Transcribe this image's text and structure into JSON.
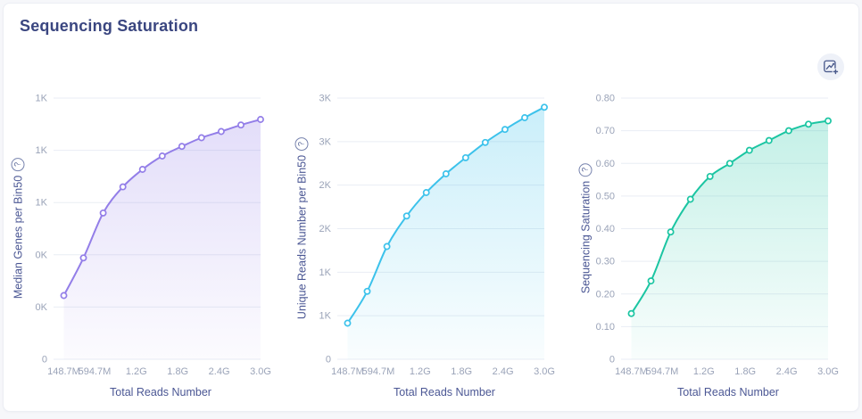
{
  "title": "Sequencing Saturation",
  "ui": {
    "help_glyph": "?",
    "export_icon": "save-as-image-icon"
  },
  "style": {
    "page_bg": "#f6f7fa",
    "card_bg": "#ffffff",
    "card_border": "#eceef4",
    "title_color": "#3a4680",
    "axis_title_color": "#4b5794",
    "tick_label_color": "#9aa3b8",
    "grid_color": "#e9edf4",
    "button_bg": "#eef1f8",
    "icon_color": "#4a5a8c"
  },
  "chart_data": [
    {
      "type": "area",
      "title": "Median Genes per Bin50",
      "xlabel": "Total Reads Number",
      "x_tick_labels": [
        "148.7M",
        "594.7M",
        "1.2G",
        "1.8G",
        "2.4G",
        "3.0G"
      ],
      "x_tick_values_millions": [
        148.7,
        594.7,
        1200,
        1800,
        2400,
        3000
      ],
      "xlim_millions": [
        0,
        3000
      ],
      "x_millions": [
        148.7,
        433.8,
        719.0,
        1004.1,
        1289.2,
        1574.4,
        1859.5,
        2144.6,
        2429.7,
        2714.9,
        3000.0
      ],
      "values": [
        244,
        388,
        560,
        660,
        727,
        778,
        815,
        848,
        872,
        897,
        918
      ],
      "ylim": [
        0,
        1000
      ],
      "y_tick_labels_bottom_to_top": [
        "0",
        "0K",
        "0K",
        "1K",
        "1K",
        "1K"
      ],
      "line_color": "#937ee8",
      "grid_on": true,
      "legend": "none"
    },
    {
      "type": "area",
      "title": "Unique Reads Number per Bin50",
      "xlabel": "Total Reads Number",
      "x_tick_labels": [
        "148.7M",
        "594.7M",
        "1.2G",
        "1.8G",
        "2.4G",
        "3.0G"
      ],
      "x_tick_values_millions": [
        148.7,
        594.7,
        1200,
        1800,
        2400,
        3000
      ],
      "xlim_millions": [
        0,
        3000
      ],
      "x_millions": [
        148.7,
        433.8,
        719.0,
        1004.1,
        1289.2,
        1574.4,
        1859.5,
        2144.6,
        2429.7,
        2714.9,
        3000.0
      ],
      "values": [
        415,
        780,
        1295,
        1645,
        1915,
        2130,
        2315,
        2490,
        2640,
        2775,
        2895
      ],
      "ylim": [
        0,
        3000
      ],
      "y_tick_labels_bottom_to_top": [
        "0",
        "1K",
        "1K",
        "2K",
        "2K",
        "3K",
        "3K"
      ],
      "line_color": "#3cc2eb",
      "grid_on": true,
      "legend": "none"
    },
    {
      "type": "area",
      "title": "Sequencing Saturation",
      "xlabel": "Total Reads Number",
      "x_tick_labels": [
        "148.7M",
        "594.7M",
        "1.2G",
        "1.8G",
        "2.4G",
        "3.0G"
      ],
      "x_tick_values_millions": [
        148.7,
        594.7,
        1200,
        1800,
        2400,
        3000
      ],
      "xlim_millions": [
        0,
        3000
      ],
      "x_millions": [
        148.7,
        433.8,
        719.0,
        1004.1,
        1289.2,
        1574.4,
        1859.5,
        2144.6,
        2429.7,
        2714.9,
        3000.0
      ],
      "values": [
        0.14,
        0.24,
        0.39,
        0.49,
        0.56,
        0.6,
        0.64,
        0.67,
        0.7,
        0.72,
        0.73
      ],
      "ylim": [
        0,
        0.8
      ],
      "y_tick_labels_bottom_to_top": [
        "0",
        "0.10",
        "0.20",
        "0.30",
        "0.40",
        "0.50",
        "0.60",
        "0.70",
        "0.80"
      ],
      "line_color": "#1bc5a2",
      "grid_on": true,
      "legend": "none"
    }
  ]
}
